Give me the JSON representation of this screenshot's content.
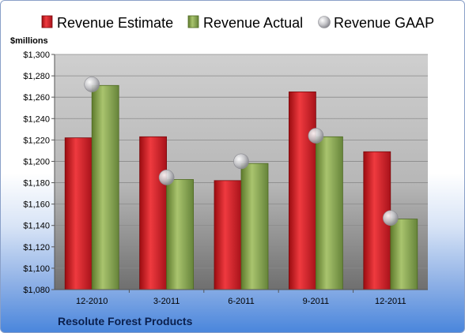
{
  "chart_data": {
    "type": "bar",
    "title": "Resolute Forest Products",
    "ylabel": "$millions",
    "xlabel": "",
    "categories": [
      "12-2010",
      "3-2011",
      "6-2011",
      "9-2011",
      "12-2011"
    ],
    "series": [
      {
        "name": "Revenue Estimate",
        "kind": "bar",
        "values": [
          1222,
          1223,
          1182,
          1265,
          1209
        ]
      },
      {
        "name": "Revenue Actual",
        "kind": "bar",
        "values": [
          1271,
          1183,
          1198,
          1223,
          1146
        ]
      },
      {
        "name": "Revenue GAAP",
        "kind": "scatter",
        "values": [
          1272,
          1185,
          1200,
          1224,
          1147
        ]
      }
    ],
    "ylim": [
      1080,
      1300
    ],
    "ytick_step": 20,
    "ytick_labels": [
      "$1,080",
      "$1,100",
      "$1,120",
      "$1,140",
      "$1,160",
      "$1,180",
      "$1,200",
      "$1,220",
      "$1,240",
      "$1,260",
      "$1,280",
      "$1,300"
    ],
    "grid": "horizontal",
    "legend_position": "top",
    "colors": {
      "estimate": "#e01e24",
      "actual": "#8fae52",
      "gaap": "#b8b8bc",
      "plot_bg": "#b4b4b4"
    }
  }
}
